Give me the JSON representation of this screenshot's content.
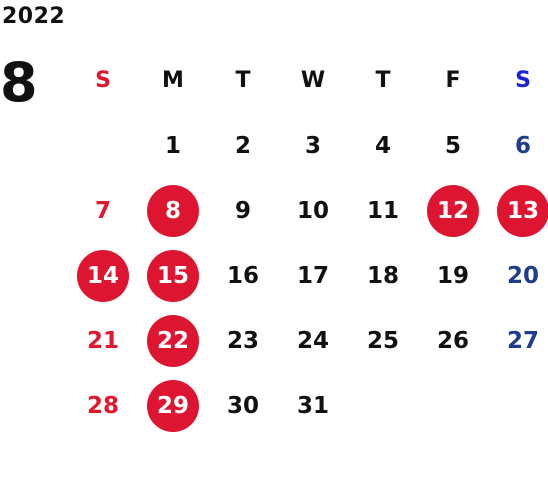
{
  "calendar": {
    "year": "2022",
    "month": "8",
    "weekdays": [
      "S",
      "M",
      "T",
      "W",
      "T",
      "F",
      "S"
    ],
    "weeks": [
      [
        "",
        "1",
        "2",
        "3",
        "4",
        "5",
        "6"
      ],
      [
        "7",
        "8",
        "9",
        "10",
        "11",
        "12",
        "13"
      ],
      [
        "14",
        "15",
        "16",
        "17",
        "18",
        "19",
        "20"
      ],
      [
        "21",
        "22",
        "23",
        "24",
        "25",
        "26",
        "27"
      ],
      [
        "28",
        "29",
        "30",
        "31",
        "",
        "",
        ""
      ]
    ],
    "holidays": [
      "8",
      "12",
      "13",
      "14",
      "15",
      "22",
      "29"
    ]
  },
  "colors": {
    "sunday": "#e0182d",
    "saturday": "#1f3d8f",
    "saturday_header": "#1a22d6",
    "holiday_badge": "#dd1530",
    "text": "#111111"
  }
}
